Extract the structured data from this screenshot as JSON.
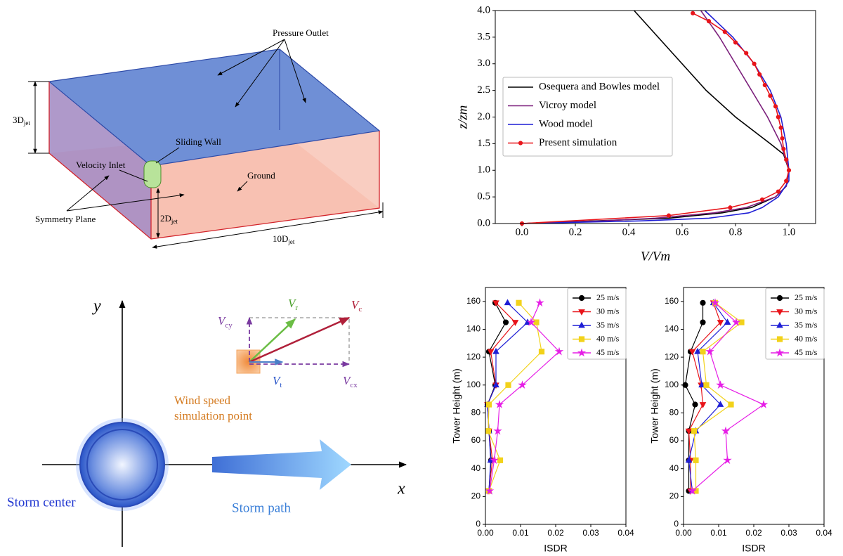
{
  "chart_data": [
    {
      "type": "line",
      "x_label": "V/Vm",
      "y_label": "z/zm",
      "xlim": [
        -0.1,
        1.1
      ],
      "ylim": [
        0,
        4
      ],
      "xticks": [
        {
          "value": 0,
          "label": "0.0"
        },
        {
          "value": 0.2,
          "label": "0.2"
        },
        {
          "value": 0.4,
          "label": "0.4"
        },
        {
          "value": 0.6,
          "label": "0.6"
        },
        {
          "value": 0.8,
          "label": "0.8"
        },
        {
          "value": 1,
          "label": "1.0"
        }
      ],
      "yticks": [
        {
          "value": 0,
          "label": "0.0"
        },
        {
          "value": 0.5,
          "label": "0.5"
        },
        {
          "value": 1,
          "label": "1.0"
        },
        {
          "value": 1.5,
          "label": "1.5"
        },
        {
          "value": 2,
          "label": "2.0"
        },
        {
          "value": 2.5,
          "label": "2.5"
        },
        {
          "value": 3,
          "label": "3.0"
        },
        {
          "value": 3.5,
          "label": "3.5"
        },
        {
          "value": 4,
          "label": "4.0"
        }
      ],
      "legend": "upper left",
      "series": [
        {
          "name": "Osequera and Bowles model",
          "color": "#000000",
          "marker": "none",
          "x": [
            0,
            0.55,
            0.75,
            0.86,
            0.95,
            0.99,
            1.0,
            0.98,
            0.93,
            0.8,
            0.69,
            0.6,
            0.51,
            0.42
          ],
          "values": [
            0,
            0.1,
            0.2,
            0.3,
            0.5,
            0.7,
            1.0,
            1.3,
            1.5,
            2.0,
            2.5,
            3.0,
            3.5,
            4.0
          ]
        },
        {
          "name": "Vicroy model",
          "color": "#7b1f7b",
          "marker": "none",
          "x": [
            0,
            0.3,
            0.5,
            0.72,
            0.84,
            0.95,
            0.99,
            1.0,
            0.97,
            0.92,
            0.86,
            0.8,
            0.74,
            0.67
          ],
          "values": [
            0,
            0.05,
            0.1,
            0.2,
            0.3,
            0.5,
            0.7,
            1.0,
            1.5,
            2.0,
            2.5,
            3.0,
            3.5,
            4.0
          ]
        },
        {
          "name": "Wood model",
          "color": "#1f1fd6",
          "marker": "none",
          "x": [
            0,
            0.45,
            0.7,
            0.85,
            0.9,
            0.96,
            1.0,
            1.0,
            0.99,
            0.97,
            0.93,
            0.87,
            0.79,
            0.685
          ],
          "values": [
            0,
            0.05,
            0.1,
            0.2,
            0.3,
            0.5,
            0.8,
            1.0,
            1.5,
            2.0,
            2.5,
            3.0,
            3.5,
            4.0
          ]
        },
        {
          "name": "Present simulation",
          "color": "#e8141a",
          "marker": "circle",
          "x": [
            0,
            0.55,
            0.78,
            0.9,
            0.96,
            0.99,
            1.0,
            0.99,
            0.98,
            0.975,
            0.97,
            0.96,
            0.95,
            0.93,
            0.91,
            0.89,
            0.87,
            0.84,
            0.8,
            0.76,
            0.7,
            0.64
          ],
          "values": [
            0,
            0.15,
            0.3,
            0.45,
            0.6,
            0.8,
            1.0,
            1.2,
            1.4,
            1.6,
            1.8,
            2.0,
            2.2,
            2.4,
            2.6,
            2.8,
            3.0,
            3.2,
            3.4,
            3.6,
            3.8,
            3.95
          ]
        }
      ]
    },
    {
      "type": "line",
      "x_label": "ISDR",
      "y_label": "Tower Height (m)",
      "xlim": [
        0,
        0.04
      ],
      "ylim": [
        0,
        170
      ],
      "xticks": [
        {
          "value": 0,
          "label": "0.00"
        },
        {
          "value": 0.01,
          "label": "0.01"
        },
        {
          "value": 0.02,
          "label": "0.02"
        },
        {
          "value": 0.03,
          "label": "0.03"
        },
        {
          "value": 0.04,
          "label": "0.04"
        }
      ],
      "yticks": [
        0,
        20,
        40,
        60,
        80,
        100,
        120,
        140,
        160
      ],
      "legend": "upper right",
      "series": [
        {
          "name": "25 m/s",
          "color": "#000000",
          "marker": "circle",
          "x": [
            0.001,
            0.0016,
            0.001,
            0.0006,
            0.0028,
            0.001,
            0.0058,
            0.0028
          ],
          "values": [
            24,
            46,
            67,
            86,
            100,
            124,
            145,
            159
          ]
        },
        {
          "name": "30 m/s",
          "color": "#e8141a",
          "marker": "triangle-down",
          "x": [
            0.001,
            0.002,
            0.001,
            0.0006,
            0.003,
            0.0015,
            0.0085,
            0.003
          ],
          "values": [
            24,
            46,
            67,
            86,
            100,
            124,
            145,
            159
          ]
        },
        {
          "name": "35 m/s",
          "color": "#1f1fd6",
          "marker": "triangle-up",
          "x": [
            0.001,
            0.0015,
            0.001,
            0.0006,
            0.003,
            0.003,
            0.012,
            0.0063
          ],
          "values": [
            24,
            46,
            67,
            86,
            100,
            124,
            145,
            159
          ]
        },
        {
          "name": "40 m/s",
          "color": "#f2d21a",
          "marker": "square",
          "x": [
            0.001,
            0.0042,
            0.0008,
            0.001,
            0.0065,
            0.016,
            0.0145,
            0.0095
          ],
          "values": [
            24,
            46,
            67,
            86,
            100,
            124,
            145,
            159
          ]
        },
        {
          "name": "45 m/s",
          "color": "#e61ee6",
          "marker": "star",
          "x": [
            0.0012,
            0.0025,
            0.0035,
            0.004,
            0.0105,
            0.021,
            0.013,
            0.0155
          ],
          "values": [
            24,
            46,
            67,
            86,
            100,
            124,
            145,
            159
          ]
        }
      ]
    },
    {
      "type": "line",
      "x_label": "ISDR",
      "y_label": "Tower Height (m)",
      "xlim": [
        0,
        0.04
      ],
      "ylim": [
        0,
        170
      ],
      "xticks": [
        {
          "value": 0,
          "label": "0.00"
        },
        {
          "value": 0.01,
          "label": "0.01"
        },
        {
          "value": 0.02,
          "label": "0.02"
        },
        {
          "value": 0.03,
          "label": "0.03"
        },
        {
          "value": 0.04,
          "label": "0.04"
        }
      ],
      "yticks": [
        0,
        20,
        40,
        60,
        80,
        100,
        120,
        140,
        160
      ],
      "legend": "upper right",
      "series": [
        {
          "name": "25 m/s",
          "color": "#000000",
          "marker": "circle",
          "x": [
            0.0015,
            0.0015,
            0.0015,
            0.0033,
            0.0005,
            0.002,
            0.0055,
            0.0055
          ],
          "values": [
            24,
            46,
            67,
            86,
            100,
            124,
            145,
            159
          ]
        },
        {
          "name": "30 m/s",
          "color": "#e8141a",
          "marker": "triangle-down",
          "x": [
            0.002,
            0.002,
            0.0015,
            0.0055,
            0.005,
            0.0025,
            0.0105,
            0.0085
          ],
          "values": [
            24,
            46,
            67,
            86,
            100,
            124,
            145,
            159
          ]
        },
        {
          "name": "35 m/s",
          "color": "#1f1fd6",
          "marker": "triangle-up",
          "x": [
            0.0025,
            0.0015,
            0.0035,
            0.0105,
            0.0052,
            0.004,
            0.0125,
            0.0085
          ],
          "values": [
            24,
            46,
            67,
            86,
            100,
            124,
            145,
            159
          ]
        },
        {
          "name": "40 m/s",
          "color": "#f2d21a",
          "marker": "square",
          "x": [
            0.0035,
            0.0035,
            0.003,
            0.0135,
            0.0065,
            0.0055,
            0.0165,
            0.009
          ],
          "values": [
            24,
            46,
            67,
            86,
            100,
            124,
            145,
            159
          ]
        },
        {
          "name": "45 m/s",
          "color": "#e61ee6",
          "marker": "star",
          "x": [
            0.0025,
            0.0125,
            0.012,
            0.0228,
            0.0105,
            0.0075,
            0.015,
            0.009
          ],
          "values": [
            24,
            46,
            67,
            86,
            100,
            124,
            145,
            159
          ]
        }
      ]
    }
  ],
  "domain_diagram": {
    "pressure_outlet": "Pressure Outlet",
    "sliding_wall": "Sliding Wall",
    "velocity_inlet": "Velocity Inlet",
    "ground": "Ground",
    "symmetry_plane": "Symmetry Plane",
    "height": {
      "main": "3D",
      "sub": "jet"
    },
    "jet_height": {
      "main": "2D",
      "sub": "jet"
    },
    "length": {
      "main": "10D",
      "sub": "jet"
    }
  },
  "storm_diagram": {
    "y_axis": "y",
    "x_axis": "x",
    "storm_center": "Storm center",
    "storm_path": "Storm path",
    "point_label": [
      "Wind speed",
      "simulation point"
    ],
    "v_cy": {
      "main": "V",
      "sub": "cy"
    },
    "v_r": {
      "main": "V",
      "sub": "r"
    },
    "v_c": {
      "main": "V",
      "sub": "c"
    },
    "v_t": {
      "main": "V",
      "sub": "t"
    },
    "v_cx": {
      "main": "V",
      "sub": "cx"
    }
  }
}
